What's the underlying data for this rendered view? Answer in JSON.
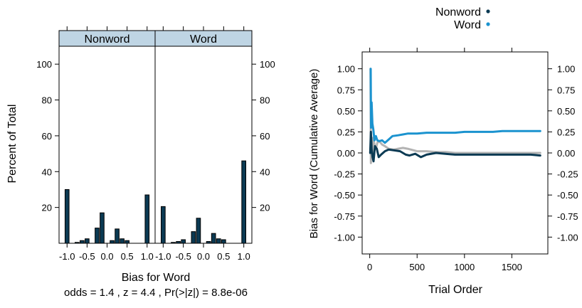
{
  "chart_data": [
    {
      "type": "bar",
      "xlabel": "Bias for Word",
      "ylabel": "Percent of Total",
      "footnote": "odds =  1.4 , z =  4.4 , Pr(>|z|) = 8.8e-06",
      "xlim": [
        -1.2,
        1.2
      ],
      "ylim": [
        0,
        110
      ],
      "x_ticks": [
        -1.0,
        -0.5,
        0.0,
        0.5,
        1.0
      ],
      "x_tick_labels": [
        "-1.0",
        "-0.5",
        "0.0",
        "0.5",
        "1.0"
      ],
      "y_ticks": [
        20,
        40,
        60,
        80,
        100
      ],
      "y_tick_labels": [
        "20",
        "40",
        "60",
        "80",
        "100"
      ],
      "bin_centers": [
        -1.0,
        -0.875,
        -0.75,
        -0.625,
        -0.5,
        -0.375,
        -0.25,
        -0.125,
        0.0,
        0.125,
        0.25,
        0.375,
        0.5,
        0.625,
        0.75,
        0.875,
        1.0
      ],
      "bin_width": 0.1,
      "bar_color": "#0b3a53",
      "strip_color": "#bfd5e4",
      "panels": [
        {
          "name": "Nonword",
          "values": [
            30,
            0,
            0.5,
            1.5,
            2.5,
            0,
            8.5,
            17,
            0,
            1.5,
            8,
            2.5,
            1.5,
            0,
            0,
            0,
            27
          ]
        },
        {
          "name": "Word",
          "values": [
            20.5,
            0,
            0.5,
            1,
            2,
            0,
            6.5,
            14,
            0,
            1,
            5.5,
            2.5,
            2,
            0,
            0,
            0,
            46
          ]
        }
      ]
    },
    {
      "type": "line",
      "xlabel": "Trial Order",
      "ylabel": "Bias for Word (Cumulative Average)",
      "xlim": [
        -80,
        1880
      ],
      "ylim": [
        -1.2,
        1.2
      ],
      "x_ticks": [
        0,
        500,
        1000,
        1500
      ],
      "x_tick_labels": [
        "0",
        "500",
        "1000",
        "1500"
      ],
      "y_ticks": [
        -1.0,
        -0.75,
        -0.5,
        -0.25,
        0.0,
        0.25,
        0.5,
        0.75,
        1.0
      ],
      "y_tick_labels": [
        "-1.00",
        "-0.75",
        "-0.50",
        "-0.25",
        "0.00",
        "0.25",
        "0.50",
        "0.75",
        "1.00"
      ],
      "legend": {
        "position": "top-center",
        "entries": [
          {
            "label": "Nonword",
            "color": "#0b3a53"
          },
          {
            "label": "Word",
            "color": "#1b93cf"
          }
        ]
      },
      "series": [
        {
          "name": "Nonword",
          "color": "#0b3a53",
          "points": [
            [
              5,
              0
            ],
            [
              12,
              0.25
            ],
            [
              20,
              0.05
            ],
            [
              30,
              -0.05
            ],
            [
              40,
              -0.1
            ],
            [
              55,
              0.08
            ],
            [
              75,
              0.05
            ],
            [
              95,
              -0.05
            ],
            [
              120,
              -0.02
            ],
            [
              160,
              0.02
            ],
            [
              200,
              0.04
            ],
            [
              260,
              0.03
            ],
            [
              320,
              0.02
            ],
            [
              380,
              -0.02
            ],
            [
              420,
              -0.03
            ],
            [
              480,
              -0.01
            ],
            [
              540,
              -0.05
            ],
            [
              600,
              -0.02
            ],
            [
              700,
              0.0
            ],
            [
              800,
              -0.01
            ],
            [
              900,
              -0.02
            ],
            [
              1000,
              -0.02
            ],
            [
              1100,
              -0.02
            ],
            [
              1200,
              -0.02
            ],
            [
              1300,
              -0.02
            ],
            [
              1400,
              -0.02
            ],
            [
              1500,
              -0.02
            ],
            [
              1600,
              -0.02
            ],
            [
              1700,
              -0.02
            ],
            [
              1800,
              -0.03
            ]
          ]
        },
        {
          "name": "Word",
          "color": "#1b93cf",
          "points": [
            [
              10,
              1.0
            ],
            [
              14,
              0.3
            ],
            [
              20,
              0.6
            ],
            [
              28,
              0.35
            ],
            [
              38,
              0.28
            ],
            [
              50,
              0.15
            ],
            [
              65,
              0.2
            ],
            [
              80,
              0.15
            ],
            [
              100,
              0.14
            ],
            [
              130,
              0.15
            ],
            [
              160,
              0.12
            ],
            [
              200,
              0.16
            ],
            [
              240,
              0.2
            ],
            [
              300,
              0.21
            ],
            [
              350,
              0.22
            ],
            [
              400,
              0.23
            ],
            [
              450,
              0.23
            ],
            [
              500,
              0.23
            ],
            [
              600,
              0.24
            ],
            [
              700,
              0.24
            ],
            [
              800,
              0.24
            ],
            [
              900,
              0.24
            ],
            [
              1000,
              0.25
            ],
            [
              1100,
              0.25
            ],
            [
              1200,
              0.25
            ],
            [
              1300,
              0.25
            ],
            [
              1400,
              0.26
            ],
            [
              1500,
              0.26
            ],
            [
              1600,
              0.26
            ],
            [
              1700,
              0.26
            ],
            [
              1800,
              0.26
            ]
          ]
        },
        {
          "color": "#b3b3b3",
          "points": [
            [
              8,
              1.0
            ],
            [
              12,
              -0.12
            ],
            [
              18,
              0.12
            ],
            [
              26,
              -0.05
            ],
            [
              36,
              0.18
            ],
            [
              50,
              0.1
            ],
            [
              65,
              0.05
            ],
            [
              80,
              0.12
            ],
            [
              100,
              0.14
            ],
            [
              130,
              0.1
            ],
            [
              160,
              0.08
            ],
            [
              200,
              0.05
            ],
            [
              250,
              0.04
            ],
            [
              300,
              0.05
            ],
            [
              350,
              0.06
            ],
            [
              400,
              0.05
            ],
            [
              500,
              0.02
            ],
            [
              600,
              0.02
            ],
            [
              700,
              0.01
            ],
            [
              800,
              0.01
            ],
            [
              900,
              0.0
            ],
            [
              1000,
              0.0
            ],
            [
              1100,
              0.0
            ],
            [
              1200,
              0.0
            ],
            [
              1300,
              0.0
            ],
            [
              1400,
              0.0
            ],
            [
              1500,
              0.0
            ],
            [
              1600,
              0.0
            ],
            [
              1700,
              0.0
            ],
            [
              1800,
              0.0
            ]
          ]
        }
      ]
    }
  ]
}
